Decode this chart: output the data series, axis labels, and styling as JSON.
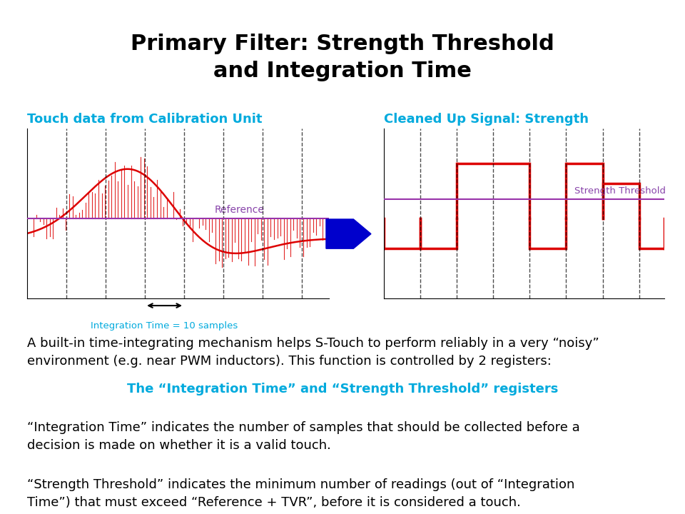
{
  "title_line1": "Primary Filter: Strength Threshold",
  "title_line2": "and Integration Time",
  "title_fontsize": 22,
  "title_color": "#000000",
  "left_chart_label": "Touch data from Calibration Unit",
  "right_chart_label": "Cleaned Up Signal: Strength",
  "label_color": "#00AADD",
  "label_fontsize": 13,
  "reference_label": "Reference",
  "reference_color": "#8844AA",
  "strength_threshold_label": "Strength Threshold",
  "strength_threshold_color": "#8844AA",
  "integration_time_label": "Integration Time = 10 samples",
  "integration_time_color": "#00AADD",
  "signal_color": "#DD0000",
  "arrow_color": "#0000CC",
  "body_text_color": "#000000",
  "highlight_text_color": "#00AADD",
  "highlight_text": "The “Integration Time” and “Strength Threshold” registers",
  "body_text1": "A built-in time-integrating mechanism helps S-Touch to perform reliably in a very “noisy”\nenvironment (e.g. near PWM inductors). This function is controlled by 2 registers:",
  "body_text2": "“Integration Time” indicates the number of samples that should be collected before a\ndecision is made on whether it is a valid touch.",
  "body_text3": "“Strength Threshold” indicates the minimum number of readings (out of “Integration\nTime”) that must exceed “Reference + TVR”, before it is considered a touch.",
  "body_fontsize": 13
}
